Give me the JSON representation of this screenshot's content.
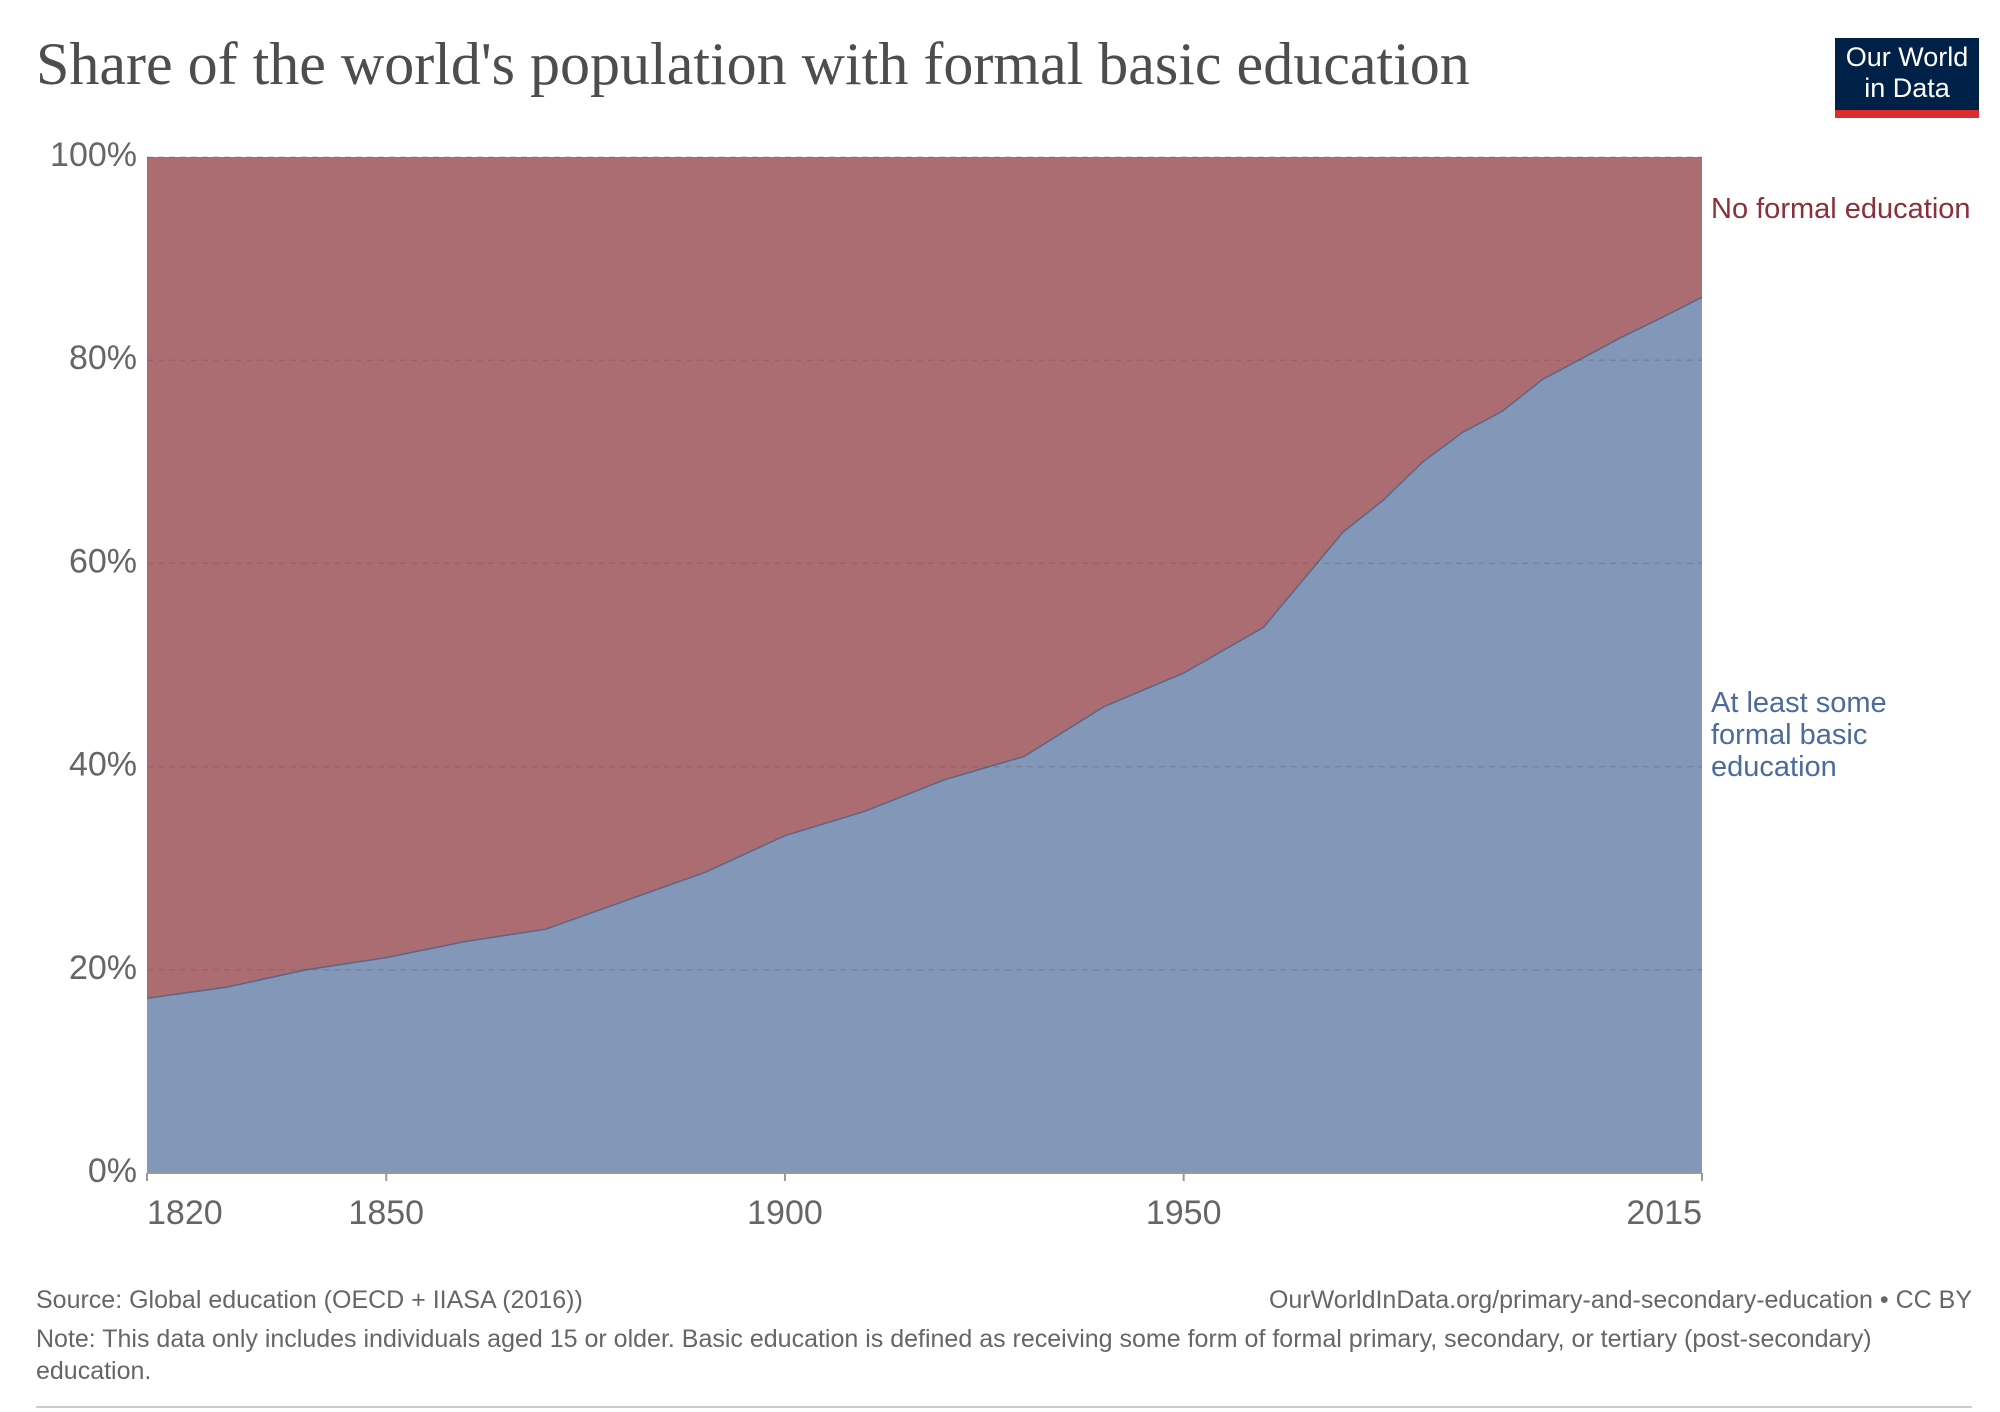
{
  "chart_data": {
    "type": "stacked-area",
    "title": "Share of the world's population with formal basic education",
    "logo": "Our World in Data",
    "x": [
      1820,
      1830,
      1840,
      1850,
      1860,
      1870,
      1880,
      1890,
      1900,
      1910,
      1920,
      1930,
      1940,
      1950,
      1960,
      1970,
      1975,
      1980,
      1985,
      1990,
      1995,
      2000,
      2005,
      2010,
      2015
    ],
    "series": [
      {
        "name": "At least some formal basic education",
        "color": "#8397b9",
        "label_color": "#4c6a9c",
        "values": [
          17.2,
          18.3,
          20,
          21.2,
          22.8,
          24,
          26.8,
          29.6,
          33.2,
          35.6,
          38.7,
          41,
          45.9,
          49.2,
          53.7,
          63.1,
          66.2,
          70,
          72.9,
          75,
          78.1,
          80.2,
          82.3,
          84.2,
          86.2
        ]
      },
      {
        "name": "No formal education",
        "color": "#ac6d72",
        "label_color": "#8b2f3b",
        "values": [
          82.8,
          81.7,
          80,
          78.8,
          77.2,
          76,
          73.2,
          70.4,
          66.8,
          64.4,
          61.3,
          59,
          54.1,
          50.8,
          46.3,
          36.9,
          33.8,
          30,
          27.1,
          25,
          21.9,
          19.8,
          17.7,
          15.8,
          13.8
        ]
      }
    ],
    "xlim": [
      1820,
      2015
    ],
    "xticks": [
      1820,
      1850,
      1900,
      1950,
      2015
    ],
    "ylim": [
      0,
      100
    ],
    "yticks": [
      {
        "value": 0,
        "label": "0%"
      },
      {
        "value": 20,
        "label": "20%"
      },
      {
        "value": 40,
        "label": "40%"
      },
      {
        "value": 60,
        "label": "60%"
      },
      {
        "value": 80,
        "label": "80%"
      },
      {
        "value": 100,
        "label": "100%"
      }
    ],
    "grid": true,
    "source": "Source: Global education (OECD + IIASA (2016))",
    "url": "OurWorldInData.org/primary-and-secondary-education • CC BY",
    "note": "Note: This data only includes individuals aged 15 or older. Basic education is defined as receiving some form of formal primary, secondary, or tertiary (post-secondary) education."
  }
}
